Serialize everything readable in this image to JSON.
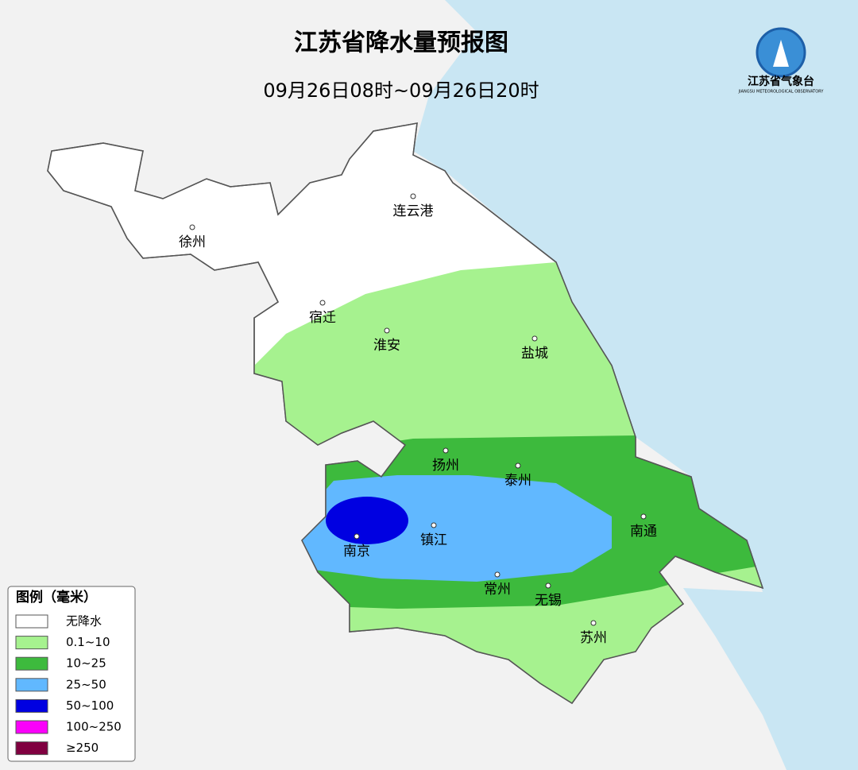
{
  "title": "江苏省降水量预报图",
  "subtitle": "09月26日08时~09月26日20时",
  "logo": {
    "name": "江苏省气象台",
    "subtitle": "JIANGSU METEOROLOGICAL OBSERVATORY"
  },
  "cities": [
    "连云港",
    "徐州",
    "宿迁",
    "淮安",
    "盐城",
    "扬州",
    "泰州",
    "南通",
    "镇江",
    "南京",
    "常州",
    "无锡",
    "苏州"
  ],
  "legend": {
    "title": "图例（毫米）",
    "items": [
      {
        "label": "无降水",
        "color": "#ffffff"
      },
      {
        "label": "0.1~10",
        "color": "#a6f28f"
      },
      {
        "label": "10~25",
        "color": "#3dba3d"
      },
      {
        "label": "25~50",
        "color": "#61b8ff"
      },
      {
        "label": "50~100",
        "color": "#0000e1"
      },
      {
        "label": "100~250",
        "color": "#fa00fa"
      },
      {
        "label": "≥250",
        "color": "#800040"
      }
    ]
  }
}
